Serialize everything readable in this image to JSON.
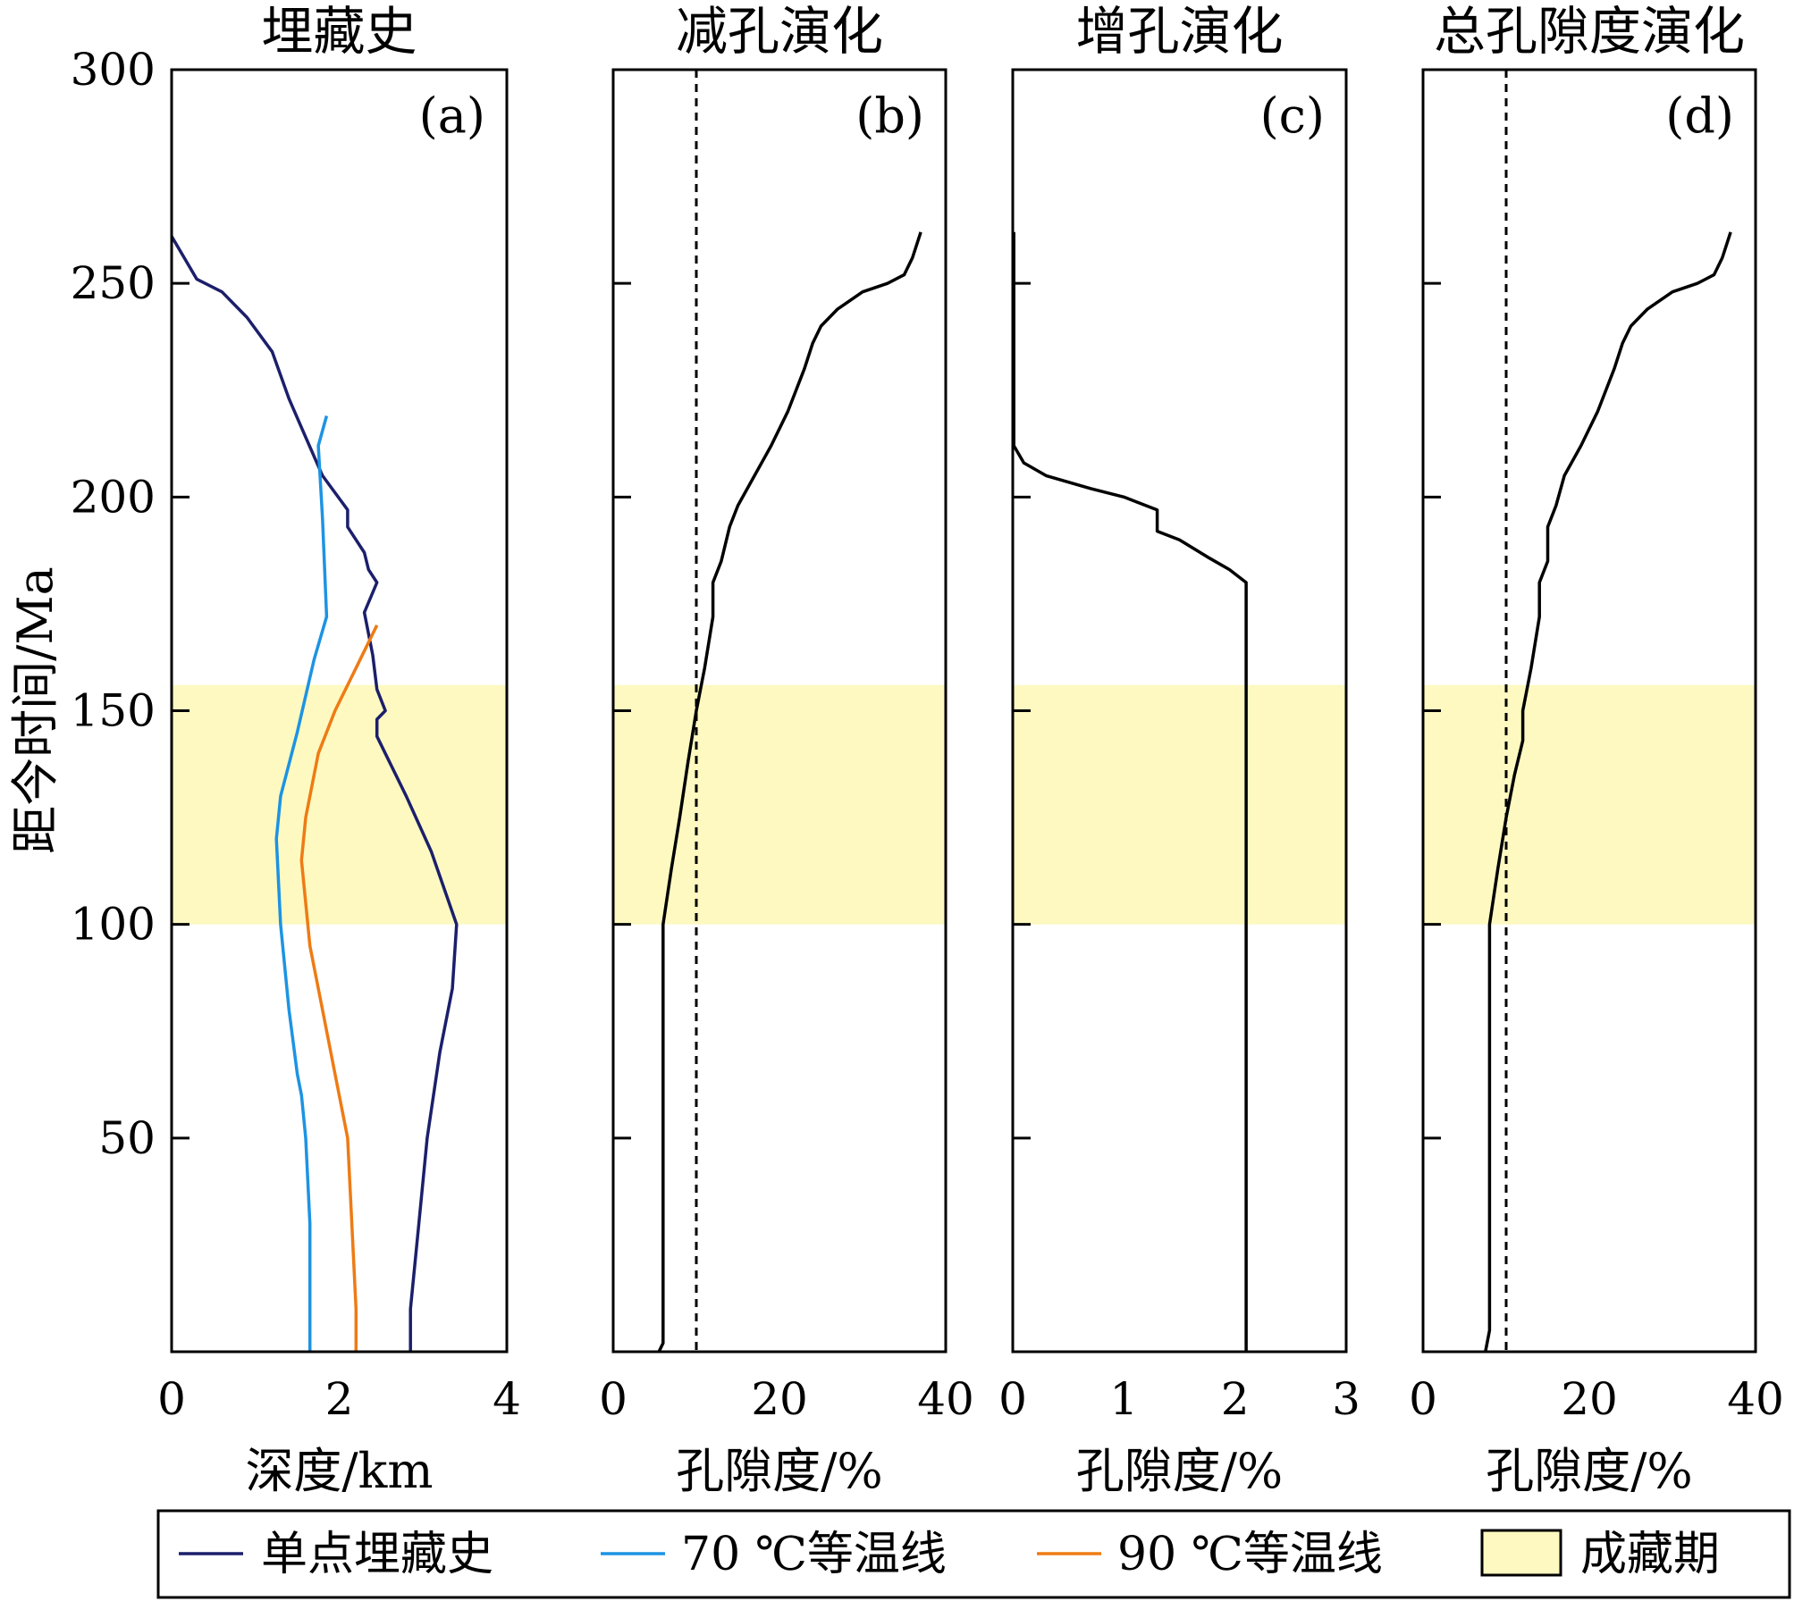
{
  "chart_data": [
    {
      "id": "a",
      "type": "line",
      "panel_label": "(a)",
      "title": "埋藏史",
      "xlabel": "深度/km",
      "ylabel": "距今时间/Ma",
      "xlim": [
        0,
        4
      ],
      "ylim": [
        0,
        300
      ],
      "x_ticks": [
        0,
        2,
        4
      ],
      "x_tick_labels": [
        "0",
        "2",
        "4"
      ],
      "y_ticks": [
        50,
        100,
        150,
        200,
        250,
        300
      ],
      "y_tick_labels": [
        "50",
        "100",
        "150",
        "200",
        "250",
        "300"
      ],
      "shaded_y_range": [
        100,
        156
      ],
      "series": [
        {
          "name": "单点埋藏史",
          "color": "#1b1f6b",
          "points": [
            [
              0,
              261
            ],
            [
              0.3,
              251
            ],
            [
              0.6,
              248
            ],
            [
              0.9,
              242
            ],
            [
              1.2,
              234
            ],
            [
              1.4,
              223
            ],
            [
              1.6,
              214
            ],
            [
              1.8,
              205
            ],
            [
              2.1,
              197
            ],
            [
              2.1,
              193
            ],
            [
              2.3,
              187
            ],
            [
              2.35,
              183
            ],
            [
              2.45,
              180
            ],
            [
              2.3,
              173
            ],
            [
              2.4,
              163
            ],
            [
              2.45,
              155
            ],
            [
              2.55,
              150
            ],
            [
              2.45,
              148
            ],
            [
              2.45,
              144
            ],
            [
              2.8,
              130
            ],
            [
              3.1,
              117
            ],
            [
              3.4,
              100
            ],
            [
              3.35,
              85
            ],
            [
              3.2,
              70
            ],
            [
              3.05,
              50
            ],
            [
              2.95,
              30
            ],
            [
              2.85,
              10
            ],
            [
              2.85,
              0
            ]
          ]
        },
        {
          "name": "70 ℃等温线",
          "color": "#1d93e3",
          "points": [
            [
              1.85,
              219
            ],
            [
              1.75,
              212
            ],
            [
              1.8,
              195
            ],
            [
              1.85,
              172
            ],
            [
              1.7,
              162
            ],
            [
              1.5,
              145
            ],
            [
              1.3,
              130
            ],
            [
              1.25,
              120
            ],
            [
              1.3,
              100
            ],
            [
              1.4,
              80
            ],
            [
              1.5,
              65
            ],
            [
              1.55,
              60
            ],
            [
              1.6,
              50
            ],
            [
              1.65,
              30
            ],
            [
              1.65,
              10
            ],
            [
              1.65,
              0
            ]
          ]
        },
        {
          "name": "90 ℃等温线",
          "color": "#ee7b15",
          "points": [
            [
              2.45,
              170
            ],
            [
              2.2,
              160
            ],
            [
              1.95,
              150
            ],
            [
              1.75,
              140
            ],
            [
              1.6,
              125
            ],
            [
              1.55,
              115
            ],
            [
              1.65,
              95
            ],
            [
              1.8,
              80
            ],
            [
              1.95,
              65
            ],
            [
              2.1,
              50
            ],
            [
              2.15,
              30
            ],
            [
              2.2,
              10
            ],
            [
              2.2,
              0
            ]
          ]
        }
      ]
    },
    {
      "id": "b",
      "type": "line",
      "panel_label": "(b)",
      "title": "减孔演化",
      "xlabel": "孔隙度/%",
      "xlim": [
        0,
        40
      ],
      "ylim": [
        0,
        300
      ],
      "x_ticks": [
        0,
        20,
        40
      ],
      "x_tick_labels": [
        "0",
        "20",
        "40"
      ],
      "y_ticks": [
        50,
        100,
        150,
        200,
        250,
        300
      ],
      "shaded_y_range": [
        100,
        156
      ],
      "reference_x": 10,
      "series": [
        {
          "color": "#000000",
          "points": [
            [
              37,
              262
            ],
            [
              36,
              256
            ],
            [
              35,
              252
            ],
            [
              33,
              250
            ],
            [
              30,
              248
            ],
            [
              27,
              244
            ],
            [
              25,
              240
            ],
            [
              24,
              236
            ],
            [
              23,
              230
            ],
            [
              21,
              220
            ],
            [
              19,
              212
            ],
            [
              17,
              205
            ],
            [
              15,
              198
            ],
            [
              14,
              193
            ],
            [
              13,
              185
            ],
            [
              12,
              180
            ],
            [
              12,
              172
            ],
            [
              11,
              160
            ],
            [
              10,
              150
            ],
            [
              9,
              138
            ],
            [
              8,
              125
            ],
            [
              7,
              113
            ],
            [
              6,
              100
            ],
            [
              6,
              80
            ],
            [
              6,
              50
            ],
            [
              6,
              20
            ],
            [
              6,
              5
            ],
            [
              6,
              2
            ],
            [
              5.5,
              0
            ]
          ]
        }
      ]
    },
    {
      "id": "c",
      "type": "line",
      "panel_label": "(c)",
      "title": "增孔演化",
      "xlabel": "孔隙度/%",
      "xlim": [
        0,
        3
      ],
      "ylim": [
        0,
        300
      ],
      "x_ticks": [
        0,
        1,
        2,
        3
      ],
      "x_tick_labels": [
        "0",
        "1",
        "2",
        "3"
      ],
      "y_ticks": [
        50,
        100,
        150,
        200,
        250,
        300
      ],
      "shaded_y_range": [
        100,
        156
      ],
      "series": [
        {
          "color": "#000000",
          "points": [
            [
              0.01,
              262
            ],
            [
              0.01,
              212
            ],
            [
              0.1,
              208
            ],
            [
              0.3,
              205
            ],
            [
              0.7,
              202
            ],
            [
              1.0,
              200
            ],
            [
              1.3,
              197
            ],
            [
              1.3,
              192
            ],
            [
              1.5,
              190
            ],
            [
              1.75,
              186
            ],
            [
              1.95,
              183
            ],
            [
              2.1,
              180
            ],
            [
              2.1,
              100
            ],
            [
              2.1,
              50
            ],
            [
              2.1,
              0
            ]
          ]
        }
      ]
    },
    {
      "id": "d",
      "type": "line",
      "panel_label": "(d)",
      "title": "总孔隙度演化",
      "xlabel": "孔隙度/%",
      "xlim": [
        0,
        40
      ],
      "ylim": [
        0,
        300
      ],
      "x_ticks": [
        0,
        20,
        40
      ],
      "x_tick_labels": [
        "0",
        "20",
        "40"
      ],
      "y_ticks": [
        50,
        100,
        150,
        200,
        250,
        300
      ],
      "shaded_y_range": [
        100,
        156
      ],
      "reference_x": 10,
      "series": [
        {
          "color": "#000000",
          "points": [
            [
              37,
              262
            ],
            [
              36,
              256
            ],
            [
              35,
              252
            ],
            [
              33,
              250
            ],
            [
              30,
              248
            ],
            [
              27,
              244
            ],
            [
              25,
              240
            ],
            [
              24,
              236
            ],
            [
              23,
              230
            ],
            [
              21,
              220
            ],
            [
              19,
              212
            ],
            [
              17,
              205
            ],
            [
              16,
              198
            ],
            [
              15,
              193
            ],
            [
              15,
              185
            ],
            [
              14,
              180
            ],
            [
              14,
              172
            ],
            [
              13,
              160
            ],
            [
              12,
              150
            ],
            [
              12,
              143
            ],
            [
              11,
              135
            ],
            [
              10,
              125
            ],
            [
              9,
              113
            ],
            [
              8,
              100
            ],
            [
              8,
              80
            ],
            [
              8,
              50
            ],
            [
              8,
              20
            ],
            [
              8,
              5
            ],
            [
              7.5,
              0
            ]
          ]
        }
      ]
    }
  ],
  "legend": {
    "placement": "bottom",
    "items": [
      {
        "label": "单点埋藏史",
        "kind": "line",
        "color": "#1b1f6b"
      },
      {
        "label": "70 ℃等温线",
        "kind": "line",
        "color": "#1d93e3"
      },
      {
        "label": "90 ℃等温线",
        "kind": "line",
        "color": "#ee7b15"
      },
      {
        "label": "成藏期",
        "kind": "box",
        "color": "#fdf9c0"
      }
    ]
  },
  "colors": {
    "shade": "#fdf9c0",
    "axis": "#000000"
  }
}
